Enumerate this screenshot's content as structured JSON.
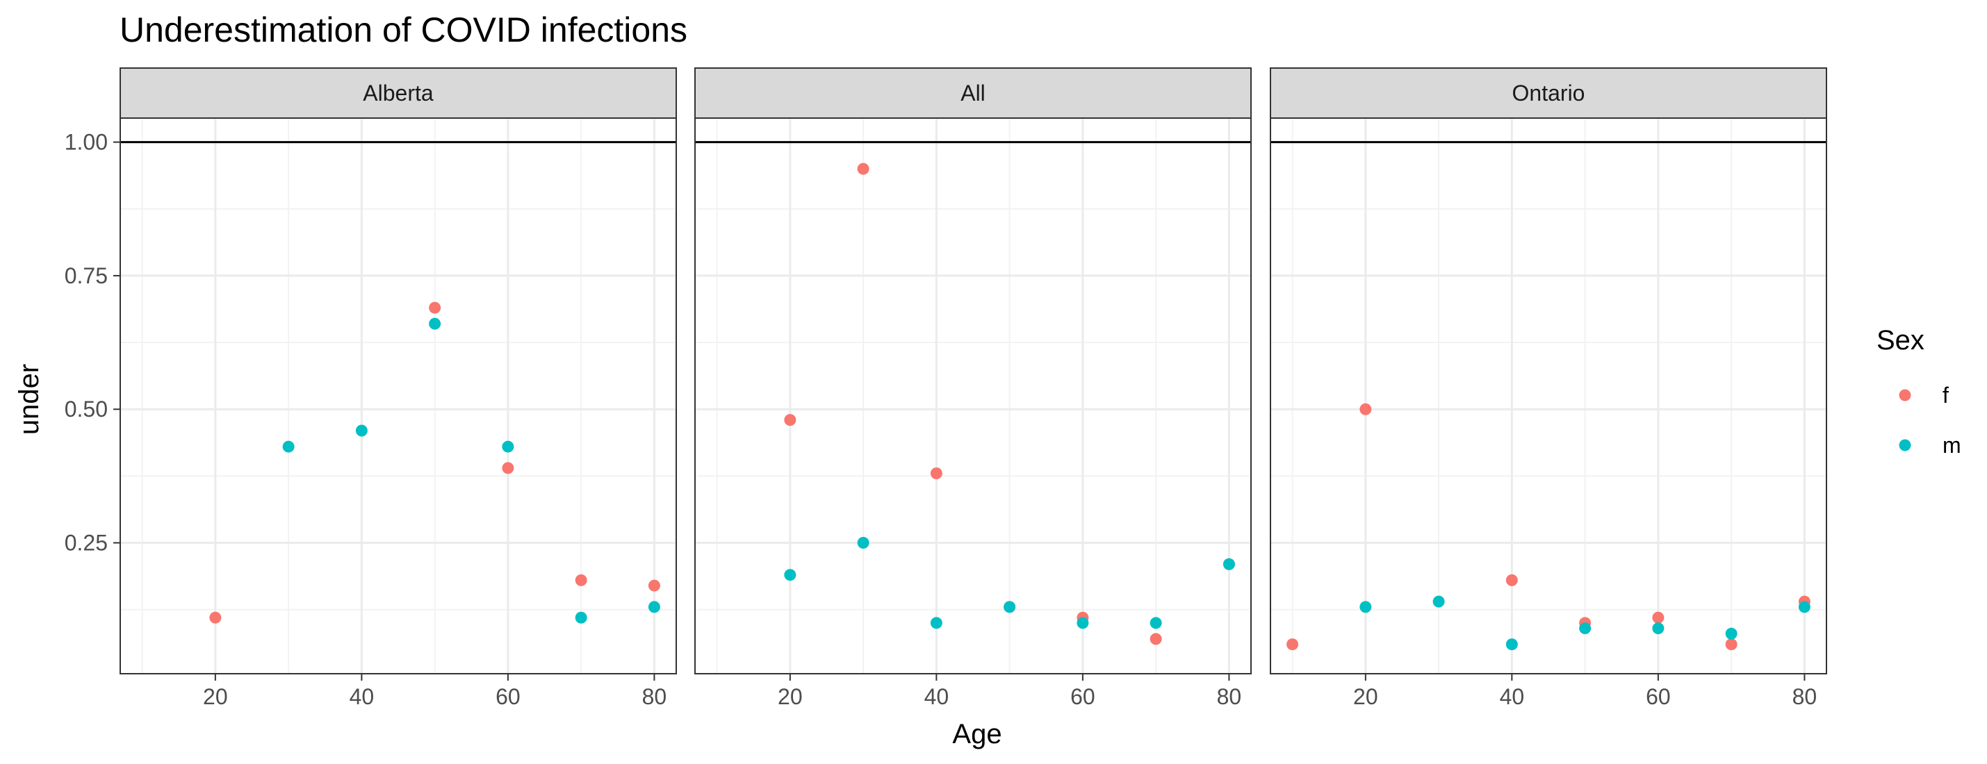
{
  "chart_data": {
    "type": "scatter",
    "title": "Underestimation of COVID infections",
    "xlabel": "Age",
    "ylabel": "under",
    "xlim": [
      7,
      83
    ],
    "ylim": [
      0.005,
      1.045
    ],
    "x_ticks": [
      20,
      40,
      60,
      80
    ],
    "y_ticks": [
      0.25,
      0.5,
      0.75,
      1.0
    ],
    "y_tick_labels": [
      "0.25",
      "0.50",
      "0.75",
      "1.00"
    ],
    "hline": 1.0,
    "grid": true,
    "legend": {
      "title": "Sex",
      "position": "right",
      "entries": [
        {
          "label": "f",
          "color": "#F8766D"
        },
        {
          "label": "m",
          "color": "#00BFC4"
        }
      ]
    },
    "facets": [
      {
        "label": "Alberta",
        "series": [
          {
            "name": "f",
            "x": [
              20,
              50,
              60,
              70,
              80
            ],
            "y": [
              0.11,
              0.69,
              0.39,
              0.18,
              0.17
            ]
          },
          {
            "name": "m",
            "x": [
              30,
              40,
              50,
              60,
              70,
              80
            ],
            "y": [
              0.43,
              0.46,
              0.66,
              0.43,
              0.11,
              0.13
            ]
          }
        ]
      },
      {
        "label": "All",
        "series": [
          {
            "name": "f",
            "x": [
              20,
              30,
              40,
              50,
              60,
              70,
              80
            ],
            "y": [
              0.48,
              0.95,
              0.38,
              0.13,
              0.11,
              0.07,
              0.21
            ]
          },
          {
            "name": "m",
            "x": [
              20,
              30,
              40,
              50,
              60,
              70,
              80
            ],
            "y": [
              0.19,
              0.25,
              0.1,
              0.13,
              0.1,
              0.1,
              0.21
            ]
          }
        ]
      },
      {
        "label": "Ontario",
        "series": [
          {
            "name": "f",
            "x": [
              10,
              20,
              40,
              50,
              60,
              70,
              80
            ],
            "y": [
              0.06,
              0.5,
              0.18,
              0.1,
              0.11,
              0.06,
              0.14
            ]
          },
          {
            "name": "m",
            "x": [
              20,
              30,
              40,
              50,
              60,
              70,
              80
            ],
            "y": [
              0.13,
              0.14,
              0.06,
              0.09,
              0.09,
              0.08,
              0.13
            ]
          }
        ]
      }
    ]
  }
}
